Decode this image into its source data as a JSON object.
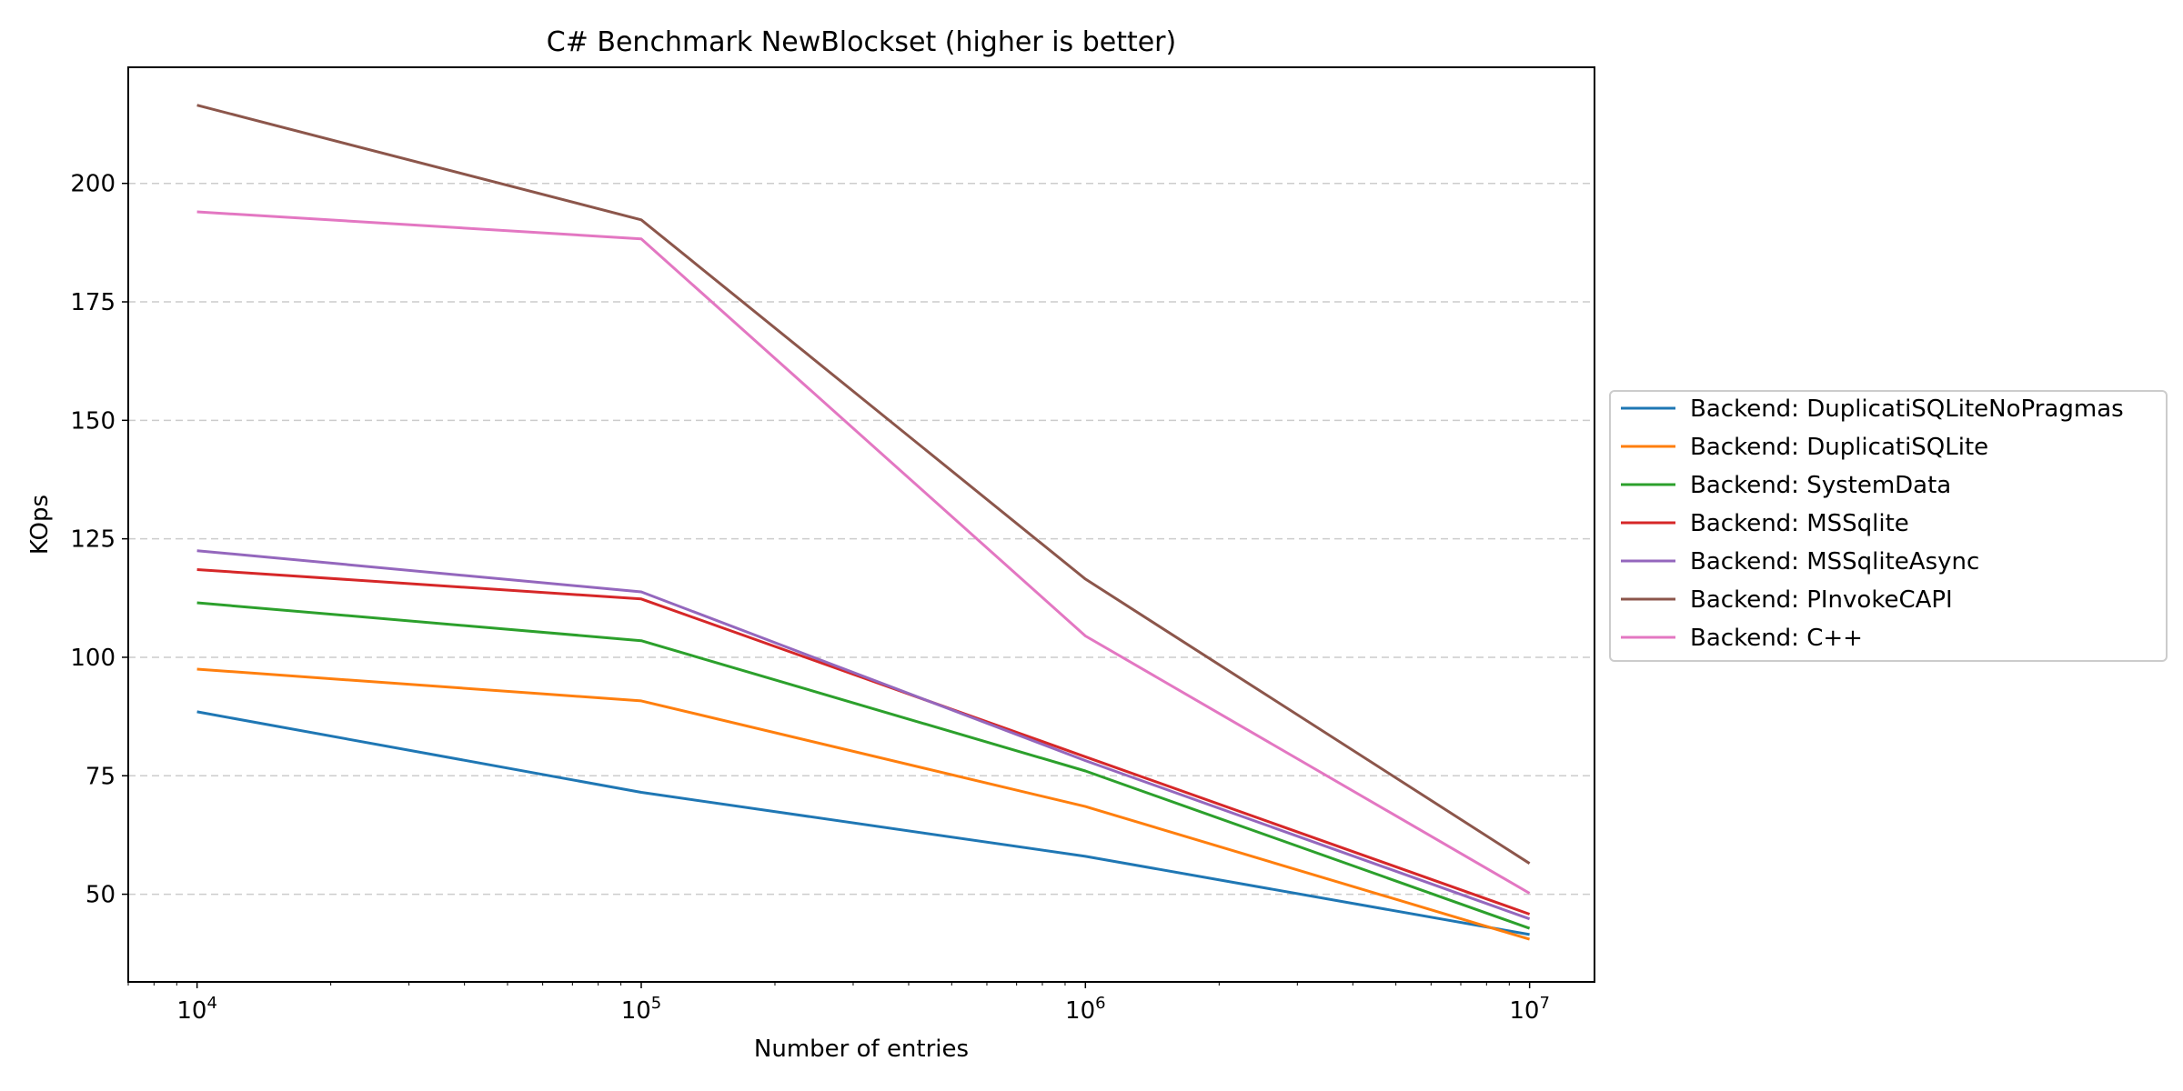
{
  "chart_data": {
    "type": "line",
    "title": "C# Benchmark NewBlockset (higher is better)",
    "xlabel": "Number of entries",
    "ylabel": "KOps",
    "x_scale": "log",
    "x": [
      10000,
      100000,
      1000000,
      10000000
    ],
    "x_tick_labels": [
      {
        "base": "10",
        "exp": "4"
      },
      {
        "base": "10",
        "exp": "5"
      },
      {
        "base": "10",
        "exp": "6"
      },
      {
        "base": "10",
        "exp": "7"
      }
    ],
    "xlim": [
      7000,
      14000000
    ],
    "ylim": [
      31.5,
      224.5
    ],
    "y_ticks": [
      50,
      75,
      100,
      125,
      150,
      175,
      200
    ],
    "grid": "y-dashed",
    "legend_position": "right-outside",
    "series": [
      {
        "name": "Backend: DuplicatiSQLiteNoPragmas",
        "color": "#1f77b4",
        "values": [
          88.5,
          71.5,
          58.0,
          41.5
        ]
      },
      {
        "name": "Backend: DuplicatiSQLite",
        "color": "#ff7f0e",
        "values": [
          97.5,
          90.8,
          68.5,
          40.5
        ]
      },
      {
        "name": "Backend: SystemData",
        "color": "#2ca02c",
        "values": [
          111.5,
          103.5,
          76.0,
          42.8
        ]
      },
      {
        "name": "Backend: MSSqlite",
        "color": "#d62728",
        "values": [
          118.5,
          112.3,
          79.0,
          45.8
        ]
      },
      {
        "name": "Backend: MSSqliteAsync",
        "color": "#9467bd",
        "values": [
          122.5,
          113.8,
          78.2,
          44.8
        ]
      },
      {
        "name": "Backend: PInvokeCAPI",
        "color": "#8c564b",
        "values": [
          216.5,
          192.3,
          116.5,
          56.5
        ]
      },
      {
        "name": "Backend: C++",
        "color": "#e377c2",
        "values": [
          194.0,
          188.3,
          104.5,
          50.2
        ]
      }
    ]
  }
}
